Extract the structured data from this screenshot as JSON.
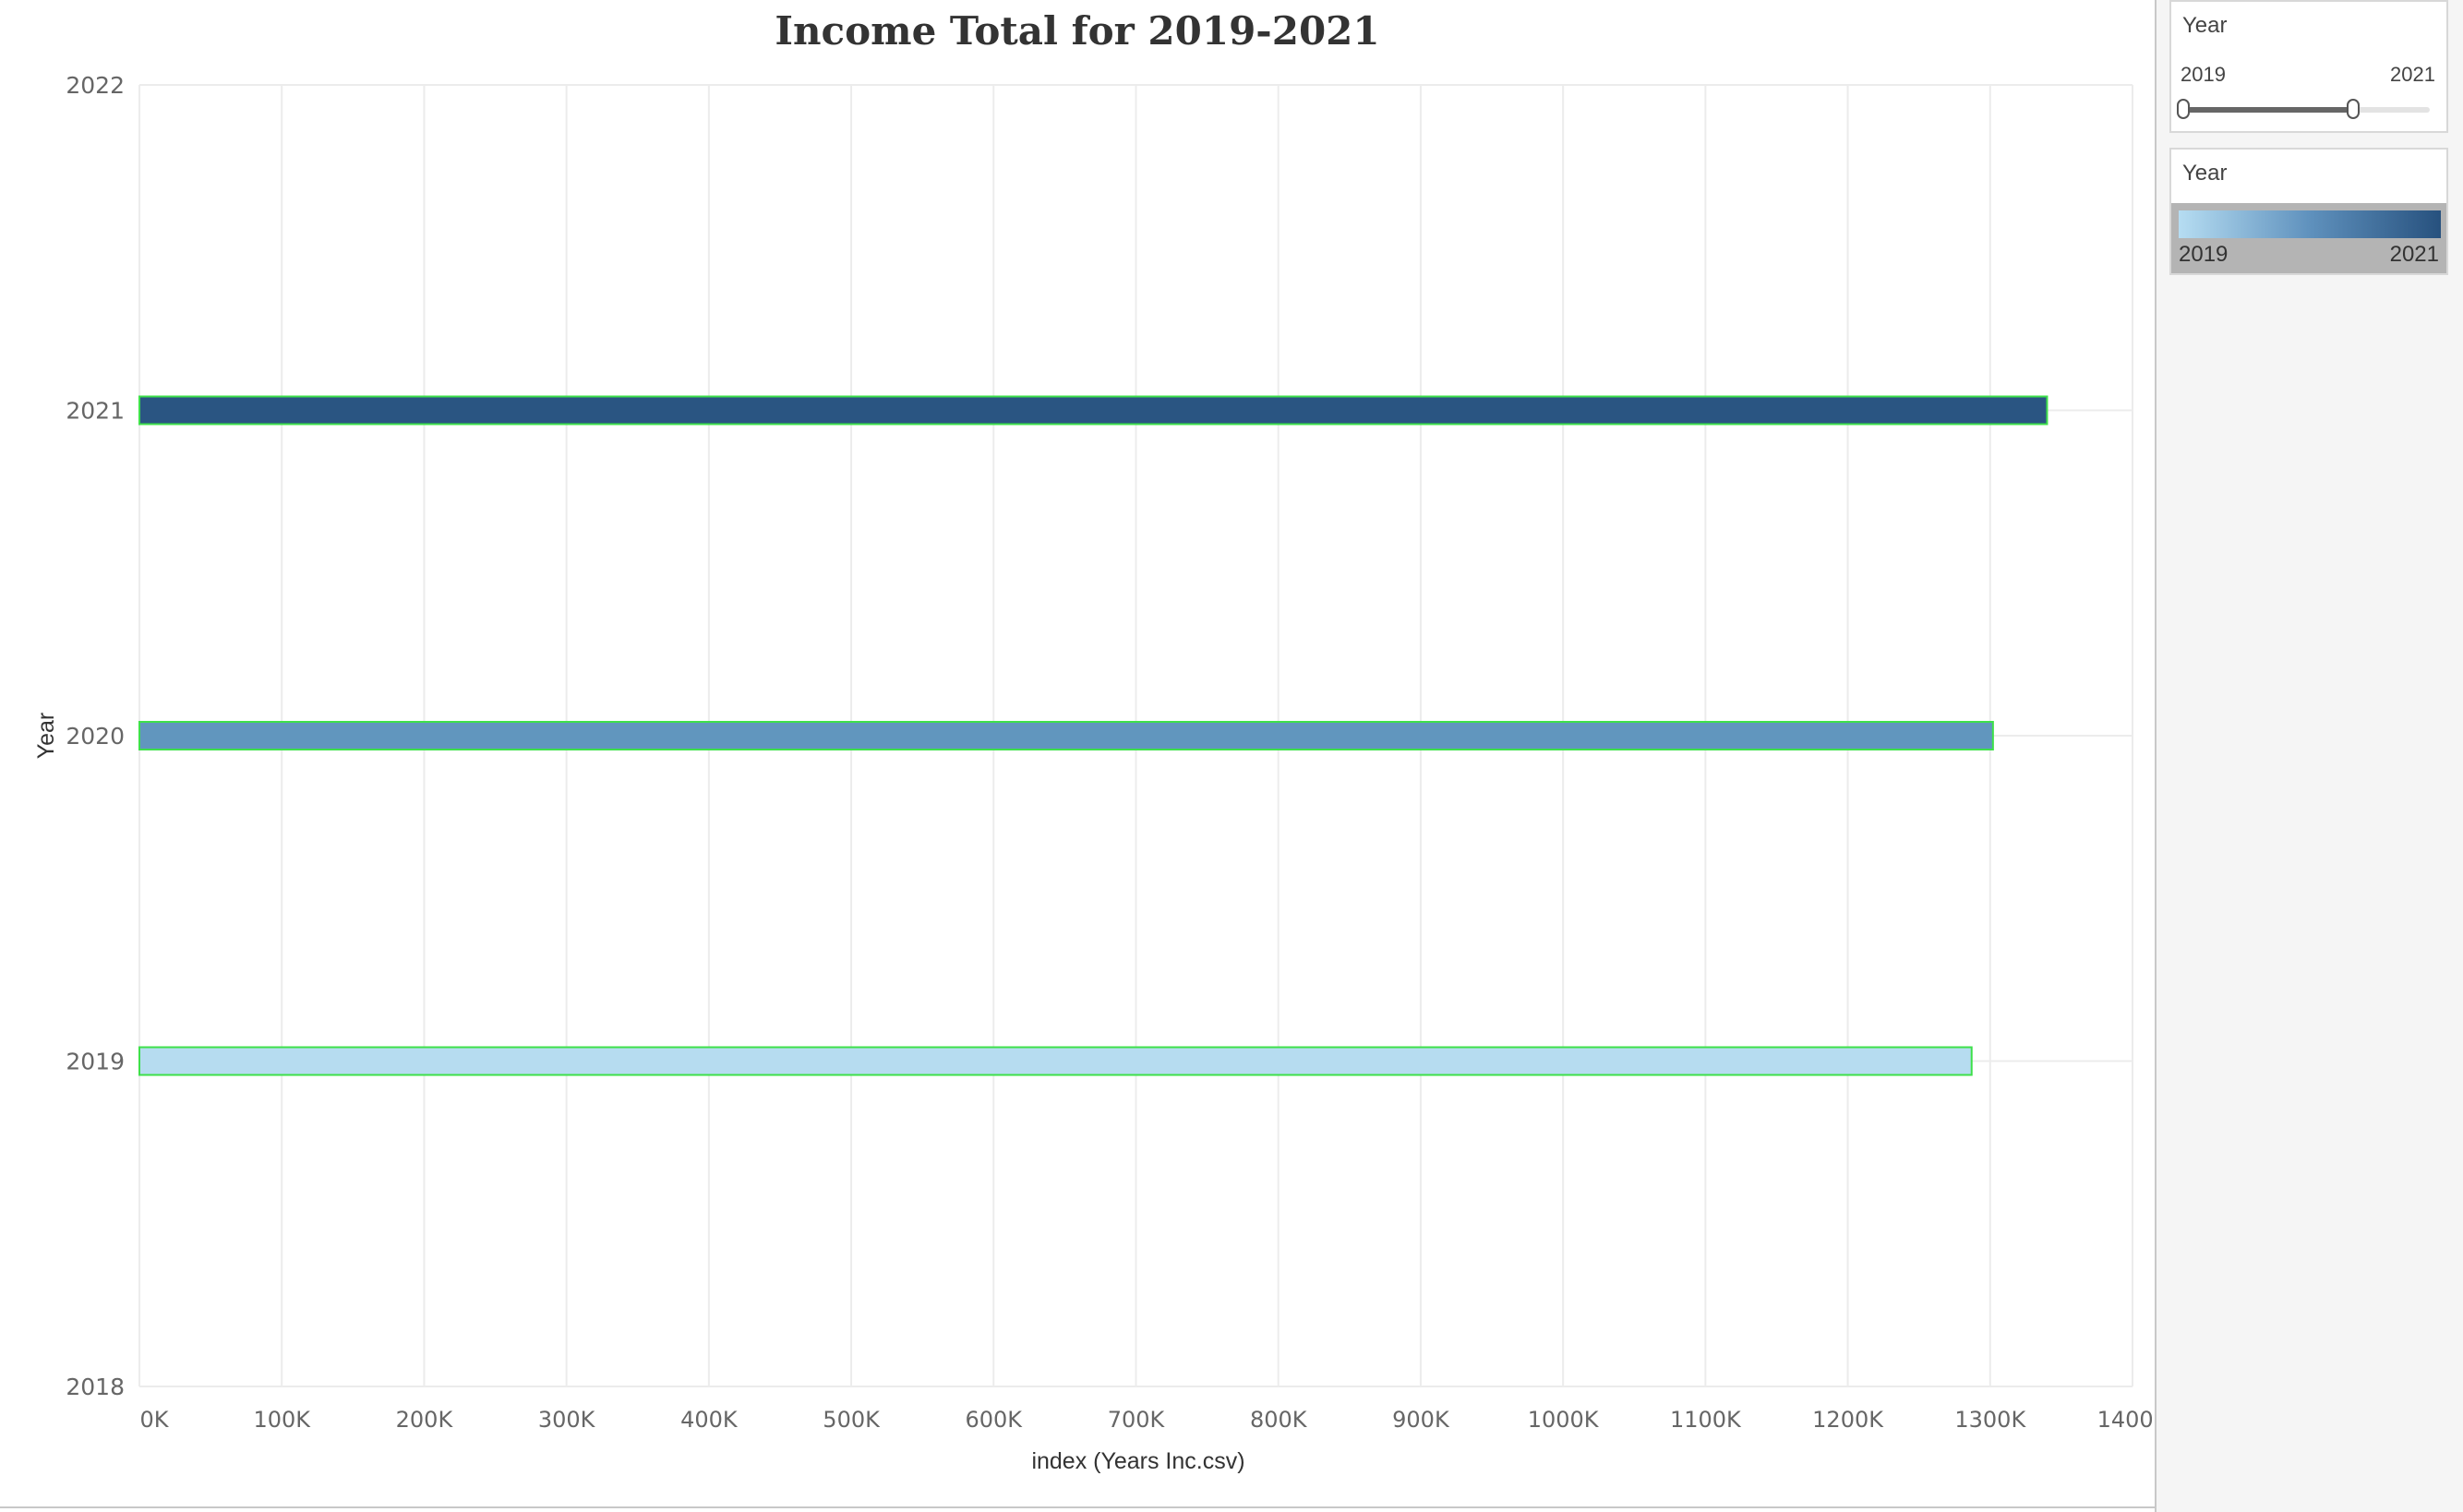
{
  "chart_data": {
    "type": "bar",
    "orientation": "horizontal",
    "title": "Income Total for 2019-2021",
    "xlabel": "index (Years Inc.csv)",
    "ylabel": "Year",
    "categories": [
      "2021",
      "2020",
      "2019"
    ],
    "values": [
      1340000,
      1302000,
      1287000
    ],
    "bar_colors": [
      "#2a5582",
      "#6196be",
      "#b6dcf0"
    ],
    "bar_outline_color": "#3ee04a",
    "y_ticks": [
      "2022",
      "2021",
      "2020",
      "2019",
      "2018"
    ],
    "x_ticks": [
      "0K",
      "100K",
      "200K",
      "300K",
      "400K",
      "500K",
      "600K",
      "700K",
      "800K",
      "900K",
      "1000K",
      "1100K",
      "1200K",
      "1300K",
      "1400K"
    ],
    "xlim": [
      0,
      1400000
    ],
    "ylim": [
      2018,
      2022
    ],
    "grid": true
  },
  "filter_panel": {
    "title": "Year",
    "range_min": "2019",
    "range_max": "2021",
    "selected_range": [
      2019,
      2021
    ]
  },
  "legend_panel": {
    "title": "Year",
    "min_label": "2019",
    "max_label": "2021",
    "gradient_colors": [
      "#b6ddf2",
      "#5f91bd",
      "#27517e"
    ]
  }
}
